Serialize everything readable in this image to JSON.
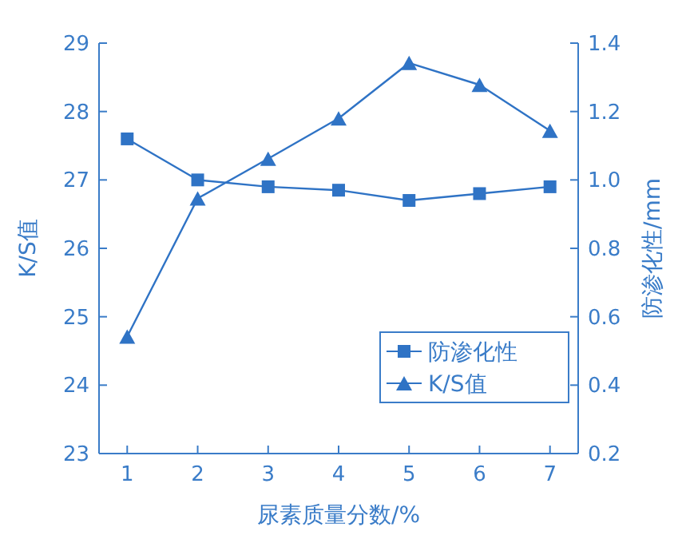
{
  "chart_data": {
    "type": "line",
    "xlabel": "尿素质量分数/%",
    "ylabel": "K/S值",
    "y2label": "防渗化性/mm",
    "x": [
      1,
      2,
      3,
      4,
      5,
      6,
      7
    ],
    "xlim": [
      0.6,
      7.4
    ],
    "xticks": [
      1,
      2,
      3,
      4,
      5,
      6,
      7
    ],
    "ylim": [
      23,
      29
    ],
    "yticks": [
      23,
      24,
      25,
      26,
      27,
      28,
      29
    ],
    "y2lim": [
      0.2,
      1.4
    ],
    "y2ticks": [
      {
        "value": 0.2,
        "label": "0.2"
      },
      {
        "value": 0.4,
        "label": "0.4"
      },
      {
        "value": 0.6,
        "label": "0.6"
      },
      {
        "value": 0.8,
        "label": "0.8"
      },
      {
        "value": 1.0,
        "label": "1.0"
      },
      {
        "value": 1.2,
        "label": "1.2"
      },
      {
        "value": 1.4,
        "label": "1.4"
      }
    ],
    "legend": "bottom right",
    "series": [
      {
        "name": "防渗化性",
        "color": "#2f73c5",
        "marker": "square",
        "axis": "y2",
        "values": [
          1.12,
          1.0,
          0.98,
          0.97,
          0.94,
          0.96,
          0.98
        ]
      },
      {
        "name": "K/S值",
        "color": "#2f73c5",
        "marker": "triangle",
        "values": [
          24.71,
          26.73,
          27.31,
          27.9,
          28.71,
          28.39,
          27.72
        ]
      }
    ]
  }
}
